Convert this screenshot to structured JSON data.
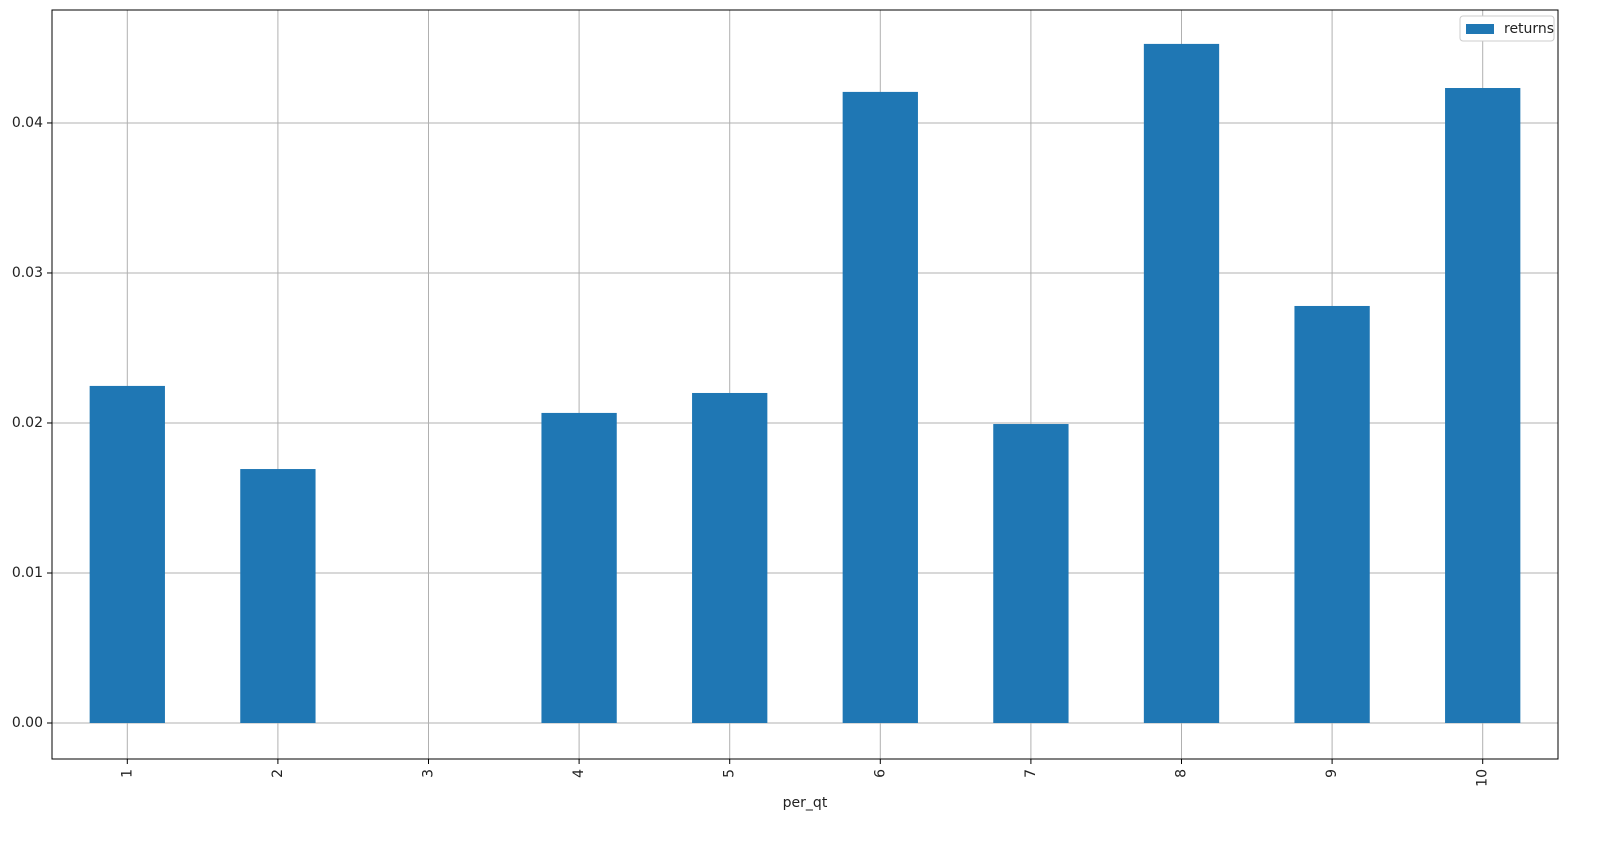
{
  "chart_data": {
    "type": "bar",
    "categories": [
      "1",
      "2",
      "3",
      "4",
      "5",
      "6",
      "7",
      "8",
      "9",
      "10"
    ],
    "x_label": "per_qt",
    "series": [
      {
        "name": "returns",
        "color": "#1f77b4",
        "values": [
          0.02247,
          0.01693,
          0,
          0.02067,
          0.022,
          0.04207,
          0.01993,
          0.04527,
          0.0278,
          0.04233
        ]
      }
    ],
    "ylim": [
      -0.0024,
      0.04753
    ],
    "yticks": [
      {
        "value": 0,
        "label": "0.00"
      },
      0.01,
      0.02,
      0.03,
      0.04
    ],
    "grid": true,
    "legend": "upper right"
  }
}
